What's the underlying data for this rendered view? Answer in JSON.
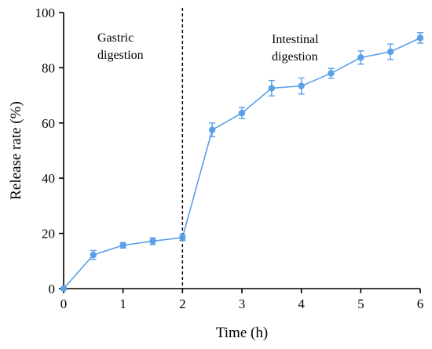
{
  "chart_data": {
    "type": "line",
    "xlabel": "Time (h)",
    "ylabel": "Release rate (%)",
    "xlim": [
      0,
      6
    ],
    "ylim": [
      0,
      100
    ],
    "xticks": [
      "0",
      "1",
      "2",
      "3",
      "4",
      "5",
      "6"
    ],
    "yticks": [
      "0",
      "20",
      "40",
      "60",
      "80",
      "100"
    ],
    "grid": false,
    "series_color": "#5aa0e8",
    "series": [
      {
        "x": [
          0,
          0.5,
          1,
          1.5,
          2,
          2.5,
          3,
          3.5,
          4,
          4.5,
          5,
          5.5,
          6
        ],
        "y": [
          0,
          12.2,
          15.7,
          17.2,
          18.5,
          57.5,
          63.6,
          72.6,
          73.4,
          78.0,
          83.7,
          85.8,
          90.8
        ],
        "error": [
          0,
          1.6,
          1.0,
          1.2,
          1.1,
          2.5,
          2.0,
          2.8,
          2.9,
          1.8,
          2.4,
          2.8,
          1.9
        ]
      }
    ],
    "divider_x": 2,
    "annotations": [
      {
        "lines": [
          "Gastric",
          "digestion"
        ]
      },
      {
        "lines": [
          "Intestinal",
          "digestion"
        ]
      }
    ]
  }
}
